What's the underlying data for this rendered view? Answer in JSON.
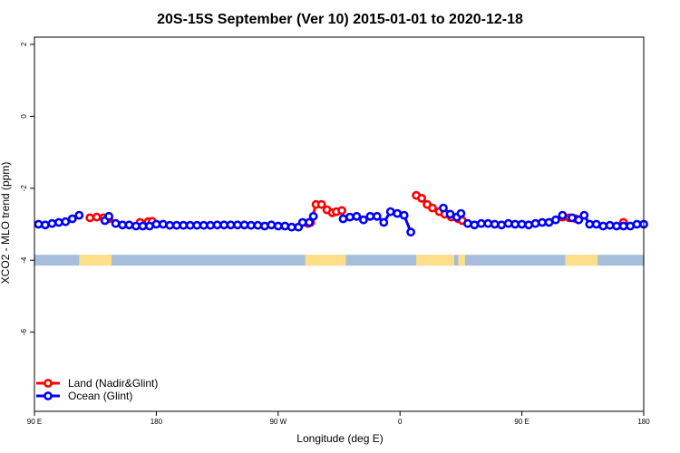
{
  "chart_data": {
    "type": "line",
    "title": "20S-15S September (Ver 10)   2015-01-01 to 2020-12-18",
    "xlabel": "Longitude (deg E)",
    "ylabel": "XCO2 - MLO trend (ppm)",
    "x_tick_labels": [
      "90 E",
      "180",
      "90 W",
      "0",
      "90 E",
      "180"
    ],
    "x_ticks": [
      90,
      180,
      270,
      360,
      450,
      540
    ],
    "xlim": [
      90,
      540
    ],
    "ylim": [
      -8.2,
      2.2
    ],
    "y_ticks": [
      -6,
      -4,
      -2,
      0,
      2
    ],
    "y_tick_labels": [
      "-6",
      "-4",
      "-2",
      "0",
      "2"
    ],
    "grid": false,
    "legend_position": "bottom-left",
    "surface_band": {
      "y_range": [
        -4.15,
        -3.85
      ],
      "ocean_color": "#a6bddb",
      "land_color": "#fddf8a",
      "land_segments": [
        [
          123,
          147
        ],
        [
          290,
          320
        ],
        [
          372,
          400
        ],
        [
          403,
          408
        ],
        [
          482,
          506
        ]
      ]
    },
    "series": [
      {
        "name": "Land (Nadir&Glint)",
        "color": "#ff0000",
        "segments": [
          [
            [
              131,
              -2.82
            ],
            [
              136,
              -2.8
            ],
            [
              141,
              -2.82
            ]
          ],
          [
            [
              145,
              -2.85
            ]
          ],
          [
            [
              168,
              -2.95
            ],
            [
              174,
              -2.93
            ],
            [
              177,
              -2.92
            ]
          ],
          [
            [
              292,
              -2.98
            ],
            [
              294,
              -2.95
            ],
            [
              298,
              -2.45
            ],
            [
              302,
              -2.45
            ],
            [
              306,
              -2.6
            ],
            [
              310,
              -2.68
            ],
            [
              313,
              -2.65
            ],
            [
              317,
              -2.62
            ]
          ],
          [
            [
              372,
              -2.2
            ],
            [
              376,
              -2.28
            ],
            [
              380,
              -2.45
            ],
            [
              384,
              -2.55
            ],
            [
              389,
              -2.65
            ],
            [
              393,
              -2.72
            ],
            [
              398,
              -2.8
            ],
            [
              403,
              -2.85
            ],
            [
              406,
              -2.9
            ]
          ],
          [
            [
              480,
              -2.8
            ],
            [
              485,
              -2.82
            ],
            [
              490,
              -2.85
            ]
          ],
          [
            [
              525,
              -2.95
            ]
          ]
        ]
      },
      {
        "name": "Ocean (Glint)",
        "color": "#0000ff",
        "segments": [
          [
            [
              93,
              -3.0
            ],
            [
              98,
              -3.02
            ],
            [
              103,
              -2.98
            ],
            [
              108,
              -2.95
            ],
            [
              113,
              -2.93
            ],
            [
              118,
              -2.85
            ],
            [
              123,
              -2.75
            ]
          ],
          [
            [
              142,
              -2.9
            ],
            [
              145,
              -2.78
            ],
            [
              150,
              -2.98
            ],
            [
              155,
              -3.02
            ],
            [
              160,
              -3.02
            ],
            [
              165,
              -3.05
            ],
            [
              170,
              -3.05
            ],
            [
              175,
              -3.05
            ],
            [
              180,
              -3.0
            ],
            [
              185,
              -3.0
            ],
            [
              190,
              -3.03
            ],
            [
              195,
              -3.03
            ],
            [
              200,
              -3.03
            ],
            [
              205,
              -3.03
            ],
            [
              210,
              -3.03
            ],
            [
              215,
              -3.03
            ],
            [
              220,
              -3.03
            ],
            [
              225,
              -3.02
            ],
            [
              230,
              -3.02
            ],
            [
              235,
              -3.02
            ],
            [
              240,
              -3.02
            ],
            [
              245,
              -3.02
            ],
            [
              250,
              -3.03
            ],
            [
              255,
              -3.03
            ],
            [
              260,
              -3.05
            ],
            [
              265,
              -3.02
            ],
            [
              270,
              -3.05
            ],
            [
              275,
              -3.05
            ],
            [
              280,
              -3.08
            ],
            [
              285,
              -3.08
            ],
            [
              288,
              -2.95
            ],
            [
              293,
              -2.95
            ],
            [
              296,
              -2.78
            ]
          ],
          [
            [
              318,
              -2.85
            ],
            [
              323,
              -2.8
            ],
            [
              328,
              -2.78
            ],
            [
              333,
              -2.88
            ],
            [
              338,
              -2.78
            ],
            [
              343,
              -2.78
            ],
            [
              348,
              -2.95
            ],
            [
              353,
              -2.65
            ],
            [
              358,
              -2.7
            ],
            [
              363,
              -2.75
            ],
            [
              368,
              -3.22
            ]
          ],
          [
            [
              392,
              -2.55
            ],
            [
              397,
              -2.72
            ],
            [
              402,
              -2.8
            ],
            [
              405,
              -2.7
            ],
            [
              410,
              -2.98
            ],
            [
              415,
              -3.02
            ],
            [
              420,
              -2.98
            ],
            [
              425,
              -2.98
            ],
            [
              430,
              -3.0
            ],
            [
              435,
              -3.02
            ],
            [
              440,
              -2.98
            ],
            [
              445,
              -3.0
            ],
            [
              450,
              -3.0
            ],
            [
              455,
              -3.02
            ],
            [
              460,
              -2.98
            ],
            [
              465,
              -2.95
            ],
            [
              470,
              -2.95
            ],
            [
              475,
              -2.88
            ],
            [
              480,
              -2.75
            ],
            [
              487,
              -2.82
            ],
            [
              492,
              -2.88
            ],
            [
              496,
              -2.75
            ],
            [
              500,
              -3.0
            ],
            [
              505,
              -3.0
            ],
            [
              510,
              -3.05
            ],
            [
              515,
              -3.03
            ],
            [
              520,
              -3.05
            ],
            [
              525,
              -3.05
            ],
            [
              530,
              -3.05
            ],
            [
              535,
              -3.0
            ],
            [
              540,
              -3.0
            ]
          ]
        ]
      }
    ]
  }
}
